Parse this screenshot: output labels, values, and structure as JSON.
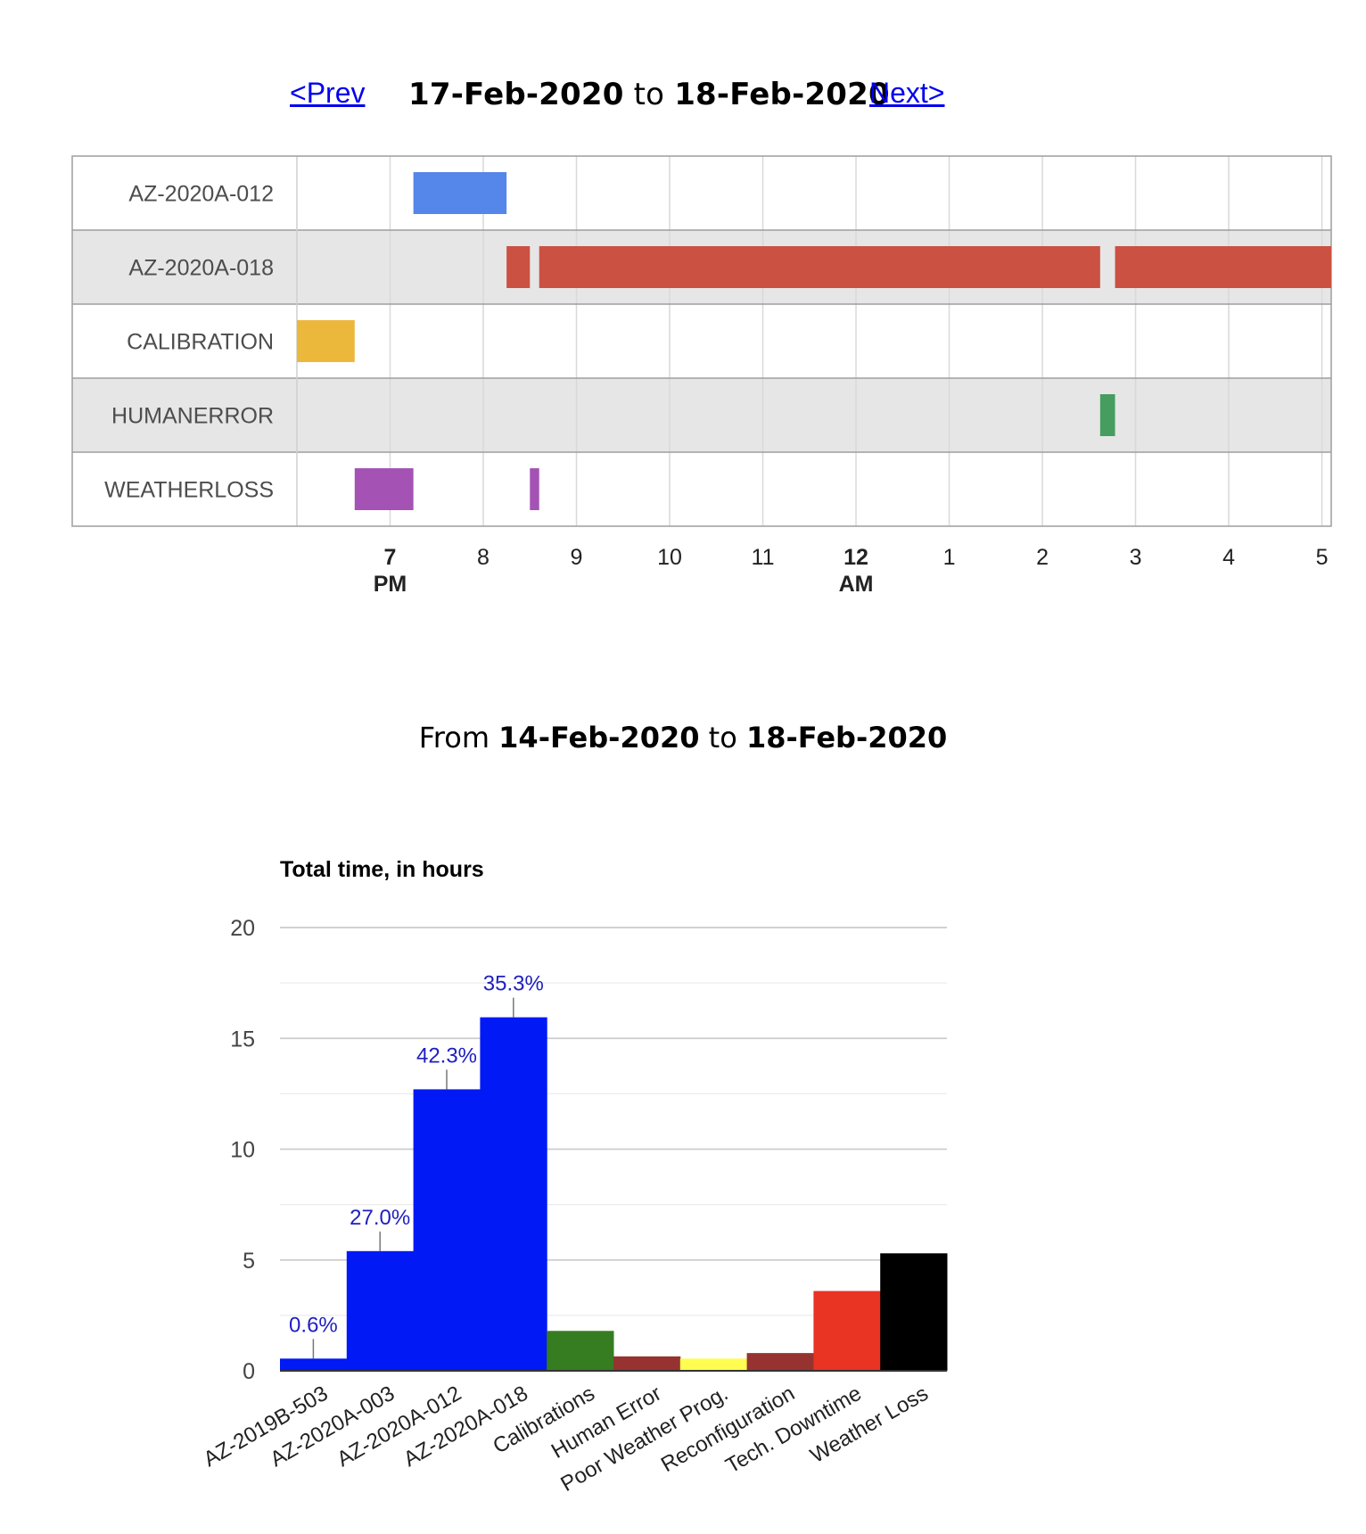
{
  "navigation": {
    "prev_label": "<Prev",
    "next_label": "Next>",
    "range_start": "17-Feb-2020",
    "range_connector": "to",
    "range_end": "18-Feb-2020"
  },
  "summary_header": {
    "prefix": "From",
    "start": "14-Feb-2020",
    "connector": "to",
    "end": "18-Feb-2020"
  },
  "chart_data": [
    {
      "type": "timeline",
      "rows": [
        "AZ-2020A-012",
        "AZ-2020A-018",
        "CALIBRATION",
        "HUMANERROR",
        "WEATHERLOSS"
      ],
      "x_range_hours": [
        18.0,
        29.1
      ],
      "ticks": [
        {
          "h": 19,
          "label": "7",
          "sub": "PM",
          "bold": true
        },
        {
          "h": 20,
          "label": "8"
        },
        {
          "h": 21,
          "label": "9"
        },
        {
          "h": 22,
          "label": "10"
        },
        {
          "h": 23,
          "label": "11"
        },
        {
          "h": 24,
          "label": "12",
          "sub": "AM",
          "bold": true
        },
        {
          "h": 25,
          "label": "1"
        },
        {
          "h": 26,
          "label": "2"
        },
        {
          "h": 27,
          "label": "3"
        },
        {
          "h": 28,
          "label": "4"
        },
        {
          "h": 29,
          "label": "5"
        }
      ],
      "bars": [
        {
          "row": 0,
          "start": 19.25,
          "end": 20.25,
          "color": "#5586e9"
        },
        {
          "row": 1,
          "start": 20.25,
          "end": 20.5,
          "color": "#cb5142"
        },
        {
          "row": 1,
          "start": 20.6,
          "end": 26.62,
          "color": "#cb5142"
        },
        {
          "row": 1,
          "start": 26.78,
          "end": 29.1,
          "color": "#cb5142"
        },
        {
          "row": 2,
          "start": 18.0,
          "end": 18.62,
          "color": "#ecb83c"
        },
        {
          "row": 3,
          "start": 26.62,
          "end": 26.78,
          "color": "#469d5f"
        },
        {
          "row": 4,
          "start": 18.62,
          "end": 19.25,
          "color": "#a453b5"
        },
        {
          "row": 4,
          "start": 20.5,
          "end": 20.6,
          "color": "#a453b5"
        }
      ]
    },
    {
      "type": "bar",
      "title": "Total time, in hours",
      "categories": [
        "AZ-2019B-503",
        "AZ-2020A-003",
        "AZ-2020A-012",
        "AZ-2020A-018",
        "Calibrations",
        "Human Error",
        "Poor Weather Prog.",
        "Reconfiguration",
        "Tech. Downtime",
        "Weather Loss"
      ],
      "values": [
        0.55,
        5.4,
        12.7,
        15.95,
        1.8,
        0.65,
        0.55,
        0.8,
        3.6,
        5.3
      ],
      "colors": [
        "#0019f5",
        "#0019f5",
        "#0019f5",
        "#0019f5",
        "#367d21",
        "#963330",
        "#fefd50",
        "#963330",
        "#e93323",
        "#000000"
      ],
      "annotations": [
        "0.6%",
        "27.0%",
        "42.3%",
        "35.3%",
        null,
        null,
        null,
        null,
        null,
        null
      ],
      "ylim": [
        0,
        20
      ],
      "yticks": [
        0,
        5,
        10,
        15,
        20
      ],
      "grid": true
    }
  ]
}
